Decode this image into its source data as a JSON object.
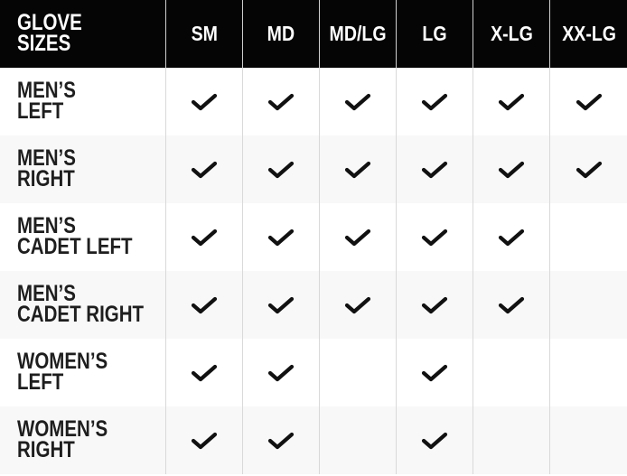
{
  "header": {
    "corner": [
      "GLOVE",
      "SIZES"
    ],
    "columns": [
      "SM",
      "MD",
      "MD/LG",
      "LG",
      "X-LG",
      "XX-LG"
    ]
  },
  "rows": [
    {
      "label": [
        "MEN’S",
        "LEFT"
      ],
      "available": [
        true,
        true,
        true,
        true,
        true,
        true
      ]
    },
    {
      "label": [
        "MEN’S",
        "RIGHT"
      ],
      "available": [
        true,
        true,
        true,
        true,
        true,
        true
      ]
    },
    {
      "label": [
        "MEN’S",
        "CADET LEFT"
      ],
      "available": [
        true,
        true,
        true,
        true,
        true,
        false
      ]
    },
    {
      "label": [
        "MEN’S",
        "CADET RIGHT"
      ],
      "available": [
        true,
        true,
        true,
        true,
        true,
        false
      ]
    },
    {
      "label": [
        "WOMEN’S",
        "LEFT"
      ],
      "available": [
        true,
        true,
        false,
        true,
        false,
        false
      ]
    },
    {
      "label": [
        "WOMEN’S",
        "RIGHT"
      ],
      "available": [
        true,
        true,
        false,
        true,
        false,
        false
      ]
    }
  ],
  "icons": {
    "available": "checkmark-icon"
  },
  "colors": {
    "header_bg": "#050505",
    "alt_row_bg": "#f8f8f8",
    "text": "#1e1e1e"
  }
}
